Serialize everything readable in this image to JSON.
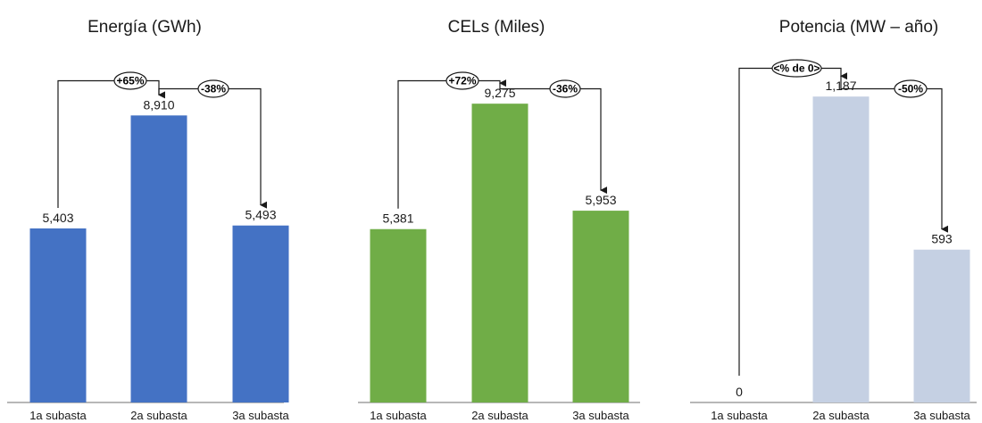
{
  "chart_data": [
    {
      "type": "bar",
      "title": "Energía (GWh)",
      "categories": [
        "1a subasta",
        "2a subasta",
        "3a subasta"
      ],
      "values": [
        5403,
        8910,
        5493
      ],
      "value_labels": [
        "5,403",
        "8,910",
        "5,493"
      ],
      "color": "#4472C4",
      "changes": [
        {
          "from": 0,
          "to": 1,
          "label": "+65%"
        },
        {
          "from": 1,
          "to": 2,
          "label": "-38%"
        }
      ]
    },
    {
      "type": "bar",
      "title": "CELs (Miles)",
      "categories": [
        "1a subasta",
        "2a subasta",
        "3a subasta"
      ],
      "values": [
        5381,
        9275,
        5953
      ],
      "value_labels": [
        "5,381",
        "9,275",
        "5,953"
      ],
      "color": "#70AD47",
      "changes": [
        {
          "from": 0,
          "to": 1,
          "label": "+72%"
        },
        {
          "from": 1,
          "to": 2,
          "label": "-36%"
        }
      ]
    },
    {
      "type": "bar",
      "title": "Potencia (MW – año)",
      "categories": [
        "1a subasta",
        "2a subasta",
        "3a subasta"
      ],
      "values": [
        0,
        1187,
        593
      ],
      "value_labels": [
        "0",
        "1,187",
        "593"
      ],
      "color": "#C5D0E3",
      "changes": [
        {
          "from": 0,
          "to": 1,
          "label": "<% de 0>"
        },
        {
          "from": 1,
          "to": 2,
          "label": "-50%"
        }
      ]
    }
  ]
}
